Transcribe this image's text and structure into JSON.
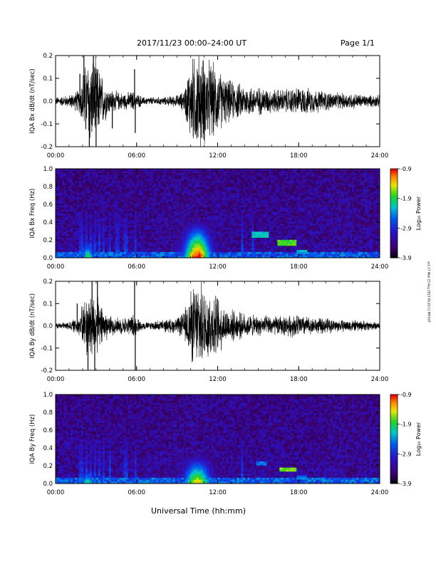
{
  "header": {
    "title": "2017/11/23  00:00–24:00 UT",
    "page": "Page 1/1"
  },
  "x_axis_title": "Universal Time (hh:mm)",
  "stamp": "ss1-17 Wed 23 Aug 2023 09:20:11 PM SGT",
  "time_ticks": [
    "00:00",
    "06:00",
    "12:00",
    "18:00",
    "24:00"
  ],
  "colorbar": {
    "label": "Log₁₀ Power",
    "tick_labels": [
      "-0.9",
      "-1.9",
      "-2.9",
      "-3.9"
    ],
    "range": [
      -3.9,
      -0.9
    ]
  },
  "chart_data": [
    {
      "type": "line",
      "ylabel": "IQA Bx dB/dt (nT/sec)",
      "xlim": [
        0,
        24
      ],
      "ylim": [
        -0.2,
        0.2
      ],
      "y_tick_labels": [
        "-0.2",
        "-0.1",
        "0.0",
        "0.1",
        "0.2"
      ],
      "y_ticks": [
        -0.2,
        -0.1,
        0.0,
        0.1,
        0.2
      ],
      "envelope": {
        "x_hours": [
          0,
          1,
          1.8,
          2,
          2.3,
          2.6,
          3,
          3.5,
          4,
          5,
          5.8,
          6,
          6.5,
          7,
          8,
          9,
          9.5,
          10,
          10.5,
          11,
          11.5,
          12,
          12.5,
          13,
          14,
          15,
          16,
          17,
          18,
          19,
          20,
          21,
          22,
          23,
          24
        ],
        "amplitude": [
          0.02,
          0.03,
          0.06,
          0.15,
          0.2,
          0.22,
          0.2,
          0.12,
          0.06,
          0.04,
          0.05,
          0.04,
          0.02,
          0.02,
          0.02,
          0.03,
          0.05,
          0.2,
          0.25,
          0.22,
          0.2,
          0.16,
          0.12,
          0.1,
          0.08,
          0.07,
          0.06,
          0.06,
          0.07,
          0.06,
          0.05,
          0.04,
          0.04,
          0.03,
          0.03
        ]
      },
      "spikes": [
        {
          "x": 1.8,
          "value": 0.12
        },
        {
          "x": 2.1,
          "value": 0.22
        },
        {
          "x": 2.5,
          "value": -0.22
        },
        {
          "x": 2.8,
          "value": 0.22
        },
        {
          "x": 3.0,
          "value": -0.22
        },
        {
          "x": 4.2,
          "value": -0.12
        },
        {
          "x": 5.85,
          "value": 0.14
        },
        {
          "x": 5.9,
          "value": -0.14
        }
      ]
    },
    {
      "type": "heatmap",
      "ylabel": "IQA Bx Freq (Hz)",
      "xlim": [
        0,
        24
      ],
      "ylim": [
        0.0,
        1.0
      ],
      "y_tick_labels": [
        "0.0",
        "0.2",
        "0.4",
        "0.6",
        "0.8",
        "1.0"
      ],
      "y_ticks": [
        0.0,
        0.2,
        0.4,
        0.6,
        0.8,
        1.0
      ],
      "bursts": [
        {
          "x_center": 10.5,
          "x_width": 1.0,
          "f_top": 0.45,
          "peak": -0.9
        },
        {
          "x_center": 2.4,
          "x_width": 0.5,
          "f_top": 0.25,
          "peak": -1.9
        }
      ],
      "streaks": [
        1.9,
        2.3,
        2.6,
        2.9,
        3.2,
        3.6,
        4.0,
        4.6,
        5.2,
        5.9,
        13.8,
        14.6
      ],
      "bands": [
        {
          "x_start": 14.5,
          "x_end": 15.8,
          "f": 0.26,
          "level": -2.3
        },
        {
          "x_start": 16.5,
          "x_end": 17.8,
          "f": 0.17,
          "level": -1.9
        },
        {
          "x_start": 17.8,
          "x_end": 18.6,
          "f": 0.07,
          "level": -2.4
        }
      ]
    },
    {
      "type": "line",
      "ylabel": "IQA By dB/dt (nT/sec)",
      "xlim": [
        0,
        24
      ],
      "ylim": [
        -0.2,
        0.2
      ],
      "y_tick_labels": [
        "-0.2",
        "-0.1",
        "0.0",
        "0.1",
        "0.2"
      ],
      "y_ticks": [
        -0.2,
        -0.1,
        0.0,
        0.1,
        0.2
      ],
      "envelope": {
        "x_hours": [
          0,
          1,
          1.8,
          2,
          2.3,
          2.6,
          3,
          3.5,
          4,
          5,
          5.8,
          6,
          6.5,
          7,
          8,
          9,
          9.5,
          10,
          10.5,
          11,
          11.5,
          12,
          12.5,
          13,
          14,
          15,
          16,
          17,
          18,
          19,
          20,
          21,
          22,
          23,
          24
        ],
        "amplitude": [
          0.015,
          0.02,
          0.05,
          0.12,
          0.16,
          0.18,
          0.15,
          0.1,
          0.05,
          0.04,
          0.06,
          0.04,
          0.02,
          0.02,
          0.03,
          0.04,
          0.07,
          0.18,
          0.22,
          0.2,
          0.18,
          0.15,
          0.1,
          0.08,
          0.06,
          0.05,
          0.05,
          0.05,
          0.06,
          0.04,
          0.04,
          0.03,
          0.03,
          0.025,
          0.02
        ]
      },
      "spikes": [
        {
          "x": 1.6,
          "value": 0.1
        },
        {
          "x": 2.4,
          "value": -0.22
        },
        {
          "x": 2.7,
          "value": 0.22
        },
        {
          "x": 2.9,
          "value": -0.22
        },
        {
          "x": 3.1,
          "value": 0.2
        },
        {
          "x": 5.85,
          "value": 0.2
        },
        {
          "x": 5.9,
          "value": -0.2
        }
      ]
    },
    {
      "type": "heatmap",
      "ylabel": "IQA By Freq (Hz)",
      "xlim": [
        0,
        24
      ],
      "ylim": [
        0.0,
        1.0
      ],
      "y_tick_labels": [
        "0.0",
        "0.2",
        "0.4",
        "0.6",
        "0.8",
        "1.0"
      ],
      "y_ticks": [
        0.0,
        0.2,
        0.4,
        0.6,
        0.8,
        1.0
      ],
      "bursts": [
        {
          "x_center": 10.5,
          "x_width": 1.0,
          "f_top": 0.35,
          "peak": -1.4
        },
        {
          "x_center": 2.4,
          "x_width": 0.5,
          "f_top": 0.2,
          "peak": -2.0
        }
      ],
      "streaks": [
        1.9,
        2.3,
        2.6,
        2.9,
        3.2,
        3.6,
        4.0,
        5.2,
        5.9,
        13.8
      ],
      "bands": [
        {
          "x_start": 14.8,
          "x_end": 15.6,
          "f": 0.23,
          "level": -2.6
        },
        {
          "x_start": 16.6,
          "x_end": 17.8,
          "f": 0.16,
          "level": -1.8
        },
        {
          "x_start": 17.8,
          "x_end": 18.6,
          "f": 0.07,
          "level": -2.6
        }
      ]
    }
  ]
}
